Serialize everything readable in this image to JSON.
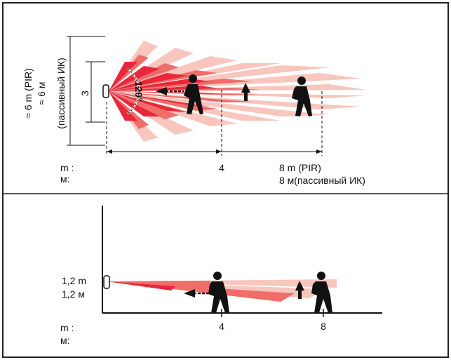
{
  "top_view": {
    "angle_label": "120°",
    "height_small": "3",
    "height_large_pir": "≈ 6 m (PIR)",
    "height_large_ru": "≈ 6 м",
    "height_large_ru2": "(пассивный ИК)",
    "axis_unit_m": "m :",
    "axis_unit_ru": "м:",
    "tick_4": "4",
    "tick_8_pir": "8 m (PIR)",
    "tick_8_ru": "8 м(пассивный ИК)"
  },
  "side_view": {
    "height_m": "1,2 m",
    "height_ru": "1,2 м",
    "axis_unit_m": "m :",
    "axis_unit_ru": "м:",
    "tick_4": "4",
    "tick_8": "8"
  },
  "colors": {
    "frame": "#222222",
    "dark_red": "#e8283a",
    "mid_red": "#f06d6a",
    "light_pink": "#f8c6bd",
    "figure": "#111111"
  }
}
